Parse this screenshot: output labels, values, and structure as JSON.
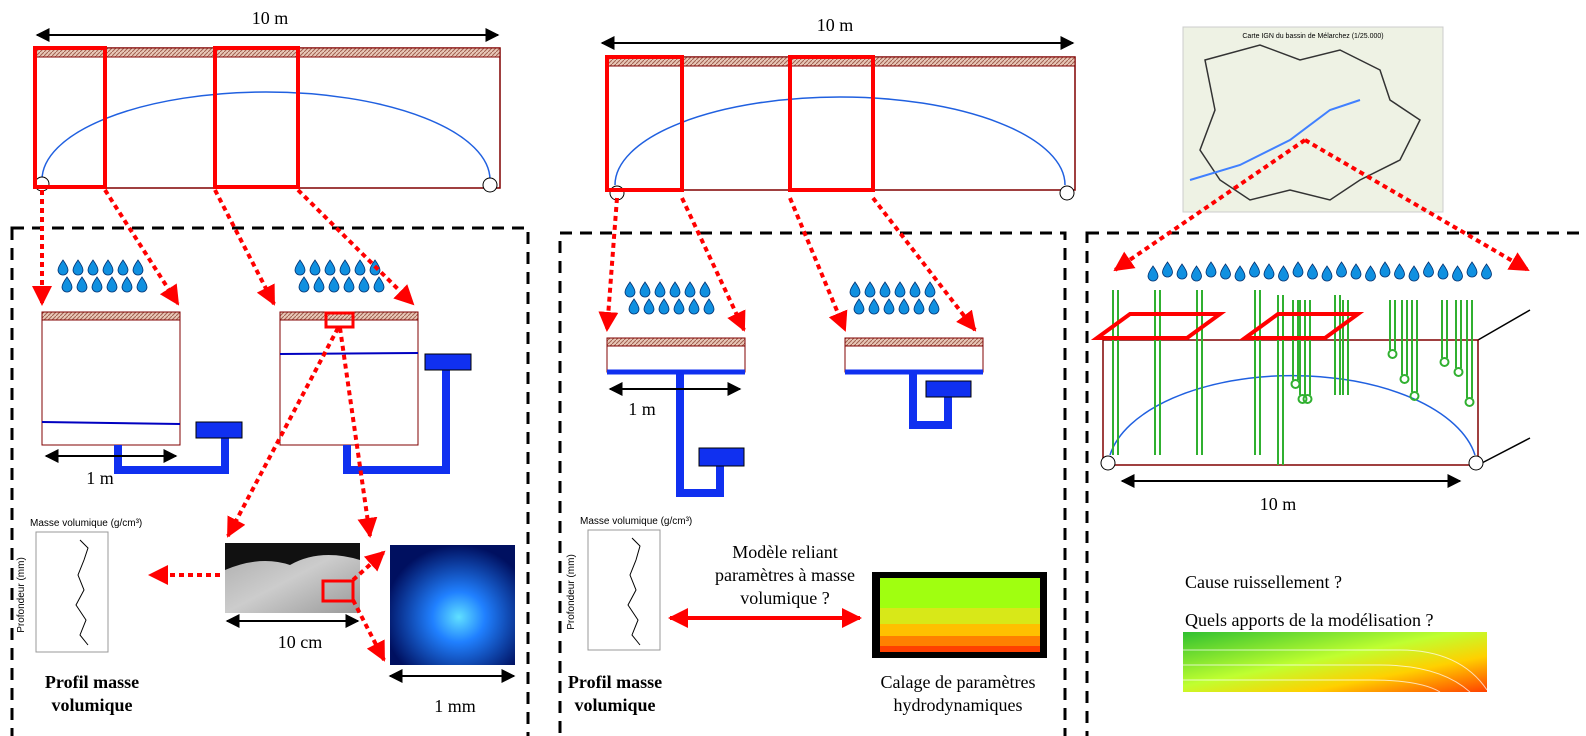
{
  "panels": [
    {
      "span_label": "10 m",
      "scale_1": "1 m",
      "axis_top": "Masse volumique (g/cm³)",
      "axis_side": "Profondeur (mm)",
      "caption": [
        "Profil masse",
        "volumique"
      ],
      "scale_2": "10 cm",
      "scale_3": "1 mm"
    },
    {
      "span_label": "10 m",
      "scale_1": "1 m",
      "axis_top": "Masse volumique (g/cm³)",
      "axis_side": "Profondeur (mm)",
      "model_text": [
        "Modèle reliant",
        "paramètres à masse",
        "volumique ?"
      ],
      "caption": [
        "Profil masse",
        "volumique"
      ],
      "caption_right": [
        "Calage de paramètres",
        "hydrodynamiques"
      ]
    },
    {
      "map_title": "Carte IGN du bassin de Mélarchez (1/25.000)",
      "span_label": "10 m",
      "question_1": "Cause ruissellement ?",
      "question_2": "Quels apports de la  modélisation ?"
    }
  ]
}
